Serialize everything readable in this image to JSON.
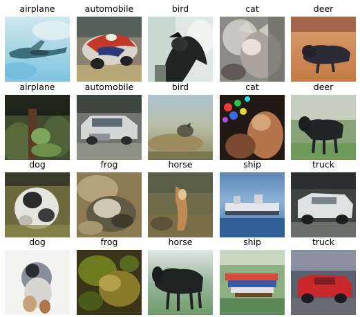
{
  "grid": {
    "rows": [
      {
        "cells": [
          {
            "label": "airplane",
            "sample": "airplane-sky"
          },
          {
            "label": "automobile",
            "sample": "red-car"
          },
          {
            "label": "bird",
            "sample": "dark-bird"
          },
          {
            "label": "cat",
            "sample": "grey-cat"
          },
          {
            "label": "deer",
            "sample": "dark-deer-sand"
          }
        ]
      },
      {
        "cells": [
          {
            "label": "airplane",
            "sample": "green-tree"
          },
          {
            "label": "automobile",
            "sample": "grey-car"
          },
          {
            "label": "bird",
            "sample": "field-bird"
          },
          {
            "label": "cat",
            "sample": "colorful-cat"
          },
          {
            "label": "deer",
            "sample": "dark-horse-grass"
          }
        ]
      },
      {
        "cells": [
          {
            "label": "dog",
            "sample": "white-dog"
          },
          {
            "label": "frog",
            "sample": "frog-blur"
          },
          {
            "label": "horse",
            "sample": "brown-horse"
          },
          {
            "label": "ship",
            "sample": "ship-harbor"
          },
          {
            "label": "truck",
            "sample": "white-truck"
          }
        ]
      },
      {
        "cells": [
          {
            "label": "dog",
            "sample": "dog-white-bg"
          },
          {
            "label": "frog",
            "sample": "frog-green"
          },
          {
            "label": "horse",
            "sample": "black-horse"
          },
          {
            "label": "ship",
            "sample": "ship-colorful"
          },
          {
            "label": "truck",
            "sample": "red-truck"
          }
        ]
      }
    ]
  }
}
